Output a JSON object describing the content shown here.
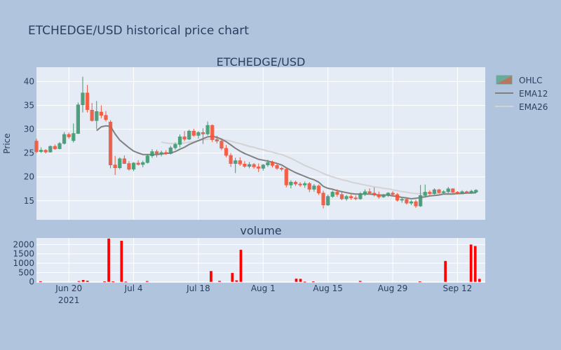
{
  "title": "ETCHEDGE/USD historical price chart",
  "chart_data": [
    {
      "type": "candlestick",
      "subtitle": "ETCHEDGE/USD",
      "ylabel": "Price",
      "ylim": [
        11.0,
        43.0
      ],
      "yticks": [
        15,
        20,
        25,
        30,
        35,
        40
      ],
      "xlim": [
        "2021-06-13",
        "2021-09-18"
      ],
      "xticks": [
        {
          "date": "2021-06-20",
          "label": "Jun 20",
          "sublabel": "2021"
        },
        {
          "date": "2021-07-04",
          "label": "Jul 4",
          "sublabel": ""
        },
        {
          "date": "2021-07-18",
          "label": "Jul 18",
          "sublabel": ""
        },
        {
          "date": "2021-08-01",
          "label": "Aug 1",
          "sublabel": ""
        },
        {
          "date": "2021-08-15",
          "label": "Aug 15",
          "sublabel": ""
        },
        {
          "date": "2021-08-29",
          "label": "Aug 29",
          "sublabel": ""
        },
        {
          "date": "2021-09-12",
          "label": "Sep 12",
          "sublabel": ""
        }
      ],
      "colors": {
        "increasing": "#3d9970",
        "decreasing": "#ef553b",
        "ema12": "#808080",
        "ema26": "#d3d3d3"
      },
      "legend": {
        "position": "top-right",
        "entries": [
          "OHLC",
          "EMA12",
          "EMA26"
        ]
      },
      "start_date": "2021-06-13",
      "ohlc": [
        [
          27.5,
          28.0,
          25.0,
          25.3
        ],
        [
          25.3,
          26.2,
          25.0,
          25.6
        ],
        [
          25.6,
          25.8,
          24.9,
          25.2
        ],
        [
          25.2,
          26.6,
          25.1,
          26.4
        ],
        [
          26.4,
          26.8,
          25.7,
          25.9
        ],
        [
          25.9,
          27.3,
          25.8,
          27.0
        ],
        [
          27.0,
          29.4,
          26.8,
          28.9
        ],
        [
          28.9,
          29.3,
          28.0,
          28.4
        ],
        [
          27.6,
          31.2,
          27.2,
          29.1
        ],
        [
          29.1,
          35.6,
          29.0,
          35.1
        ],
        [
          35.1,
          41.0,
          33.5,
          37.6
        ],
        [
          37.6,
          39.3,
          33.5,
          34.1
        ],
        [
          34.0,
          35.5,
          31.6,
          31.8
        ],
        [
          31.8,
          35.9,
          30.0,
          33.7
        ],
        [
          33.6,
          35.0,
          32.3,
          32.9
        ],
        [
          32.9,
          33.8,
          31.6,
          32.0
        ],
        [
          31.5,
          31.9,
          21.8,
          22.5
        ],
        [
          22.5,
          24.4,
          20.4,
          21.9
        ],
        [
          21.9,
          24.1,
          21.6,
          23.8
        ],
        [
          23.8,
          24.5,
          22.7,
          22.8
        ],
        [
          22.8,
          23.3,
          21.3,
          21.6
        ],
        [
          21.6,
          23.1,
          21.2,
          22.9
        ],
        [
          22.9,
          23.5,
          22.4,
          22.6
        ],
        [
          22.6,
          23.4,
          22.0,
          23.0
        ],
        [
          23.0,
          24.7,
          22.8,
          24.4
        ],
        [
          24.4,
          25.8,
          24.0,
          25.3
        ],
        [
          25.3,
          25.7,
          24.1,
          24.9
        ],
        [
          24.9,
          25.5,
          24.3,
          25.1
        ],
        [
          25.1,
          25.6,
          24.6,
          24.9
        ],
        [
          24.9,
          26.5,
          24.7,
          26.1
        ],
        [
          26.1,
          27.2,
          25.7,
          26.8
        ],
        [
          26.8,
          28.9,
          26.2,
          28.4
        ],
        [
          28.4,
          29.6,
          27.5,
          27.9
        ],
        [
          27.9,
          29.9,
          27.7,
          29.6
        ],
        [
          29.6,
          30.1,
          28.4,
          28.7
        ],
        [
          28.7,
          29.6,
          28.0,
          29.3
        ],
        [
          29.3,
          30.2,
          26.9,
          29.0
        ],
        [
          29.0,
          31.6,
          28.7,
          30.8
        ],
        [
          30.8,
          31.0,
          27.3,
          27.8
        ],
        [
          27.8,
          28.6,
          27.0,
          27.5
        ],
        [
          27.5,
          28.1,
          25.6,
          26.0
        ],
        [
          26.0,
          26.7,
          24.1,
          24.5
        ],
        [
          24.5,
          25.0,
          22.1,
          22.8
        ],
        [
          22.8,
          24.0,
          20.8,
          23.4
        ],
        [
          23.4,
          24.1,
          22.3,
          22.7
        ],
        [
          22.7,
          23.3,
          21.9,
          22.2
        ],
        [
          22.2,
          23.1,
          21.8,
          22.6
        ],
        [
          22.6,
          22.9,
          21.7,
          22.1
        ],
        [
          22.1,
          22.8,
          21.0,
          21.8
        ],
        [
          21.8,
          22.7,
          21.3,
          22.5
        ],
        [
          22.5,
          23.6,
          22.1,
          23.0
        ],
        [
          23.0,
          23.4,
          22.0,
          22.4
        ],
        [
          22.4,
          22.9,
          21.5,
          21.8
        ],
        [
          21.8,
          22.1,
          21.2,
          21.6
        ],
        [
          21.6,
          21.9,
          17.8,
          18.3
        ],
        [
          18.3,
          19.3,
          17.6,
          18.9
        ],
        [
          18.9,
          19.2,
          18.1,
          18.5
        ],
        [
          18.5,
          18.9,
          17.9,
          18.3
        ],
        [
          18.3,
          19.0,
          17.7,
          18.6
        ],
        [
          18.6,
          18.9,
          16.8,
          17.4
        ],
        [
          17.4,
          18.5,
          16.9,
          18.1
        ],
        [
          18.1,
          18.4,
          16.2,
          16.6
        ],
        [
          16.6,
          17.1,
          13.4,
          14.1
        ],
        [
          14.1,
          16.3,
          13.9,
          15.9
        ],
        [
          15.9,
          17.1,
          15.6,
          16.8
        ],
        [
          16.8,
          17.4,
          15.8,
          16.3
        ],
        [
          16.3,
          17.0,
          15.1,
          15.4
        ],
        [
          15.4,
          16.2,
          15.0,
          15.9
        ],
        [
          15.9,
          16.3,
          15.2,
          15.6
        ],
        [
          15.6,
          16.1,
          15.1,
          15.4
        ],
        [
          15.4,
          16.8,
          15.2,
          16.5
        ],
        [
          16.5,
          17.4,
          16.0,
          16.9
        ],
        [
          16.9,
          17.6,
          16.4,
          16.6
        ],
        [
          16.6,
          17.8,
          15.9,
          16.2
        ],
        [
          16.2,
          16.9,
          15.4,
          15.8
        ],
        [
          15.8,
          16.4,
          15.6,
          16.1
        ],
        [
          16.1,
          16.8,
          15.8,
          16.6
        ],
        [
          16.6,
          17.0,
          16.1,
          16.3
        ],
        [
          16.3,
          16.6,
          14.8,
          15.1
        ],
        [
          15.1,
          15.6,
          14.6,
          15.3
        ],
        [
          15.3,
          15.6,
          14.2,
          14.5
        ],
        [
          14.5,
          15.1,
          14.1,
          14.8
        ],
        [
          14.8,
          15.2,
          13.5,
          13.9
        ],
        [
          13.9,
          18.3,
          13.7,
          16.1
        ],
        [
          16.1,
          18.4,
          15.8,
          16.8
        ],
        [
          16.8,
          17.2,
          16.2,
          16.5
        ],
        [
          16.5,
          17.6,
          16.3,
          17.3
        ],
        [
          17.3,
          17.5,
          16.5,
          16.7
        ],
        [
          16.7,
          17.2,
          16.4,
          16.9
        ],
        [
          16.9,
          17.9,
          16.6,
          17.5
        ],
        [
          17.5,
          17.6,
          16.6,
          16.8
        ],
        [
          16.8,
          17.0,
          16.3,
          16.6
        ],
        [
          16.6,
          17.2,
          16.4,
          16.9
        ],
        [
          16.9,
          17.1,
          16.5,
          16.7
        ],
        [
          16.7,
          17.3,
          16.5,
          17.0
        ],
        [
          16.8,
          17.4,
          16.6,
          17.2
        ]
      ],
      "ema12": [
        [
          13,
          29.7
        ],
        [
          14,
          30.5
        ],
        [
          15,
          30.7
        ],
        [
          16,
          30.6
        ],
        [
          17,
          29.0
        ],
        [
          18,
          27.7
        ],
        [
          19,
          26.9
        ],
        [
          20,
          26.1
        ],
        [
          21,
          25.4
        ],
        [
          22,
          25.0
        ],
        [
          23,
          24.7
        ],
        [
          24,
          24.7
        ],
        [
          25,
          24.7
        ],
        [
          26,
          24.7
        ],
        [
          27,
          24.8
        ],
        [
          28,
          24.9
        ],
        [
          29,
          25.0
        ],
        [
          30,
          25.3
        ],
        [
          31,
          25.8
        ],
        [
          32,
          26.2
        ],
        [
          33,
          26.8
        ],
        [
          34,
          27.2
        ],
        [
          35,
          27.6
        ],
        [
          36,
          28.0
        ],
        [
          37,
          28.4
        ],
        [
          38,
          28.5
        ],
        [
          39,
          28.3
        ],
        [
          40,
          27.9
        ],
        [
          41,
          27.4
        ],
        [
          42,
          26.7
        ],
        [
          43,
          26.0
        ],
        [
          44,
          25.4
        ],
        [
          45,
          24.9
        ],
        [
          46,
          24.5
        ],
        [
          47,
          24.1
        ],
        [
          48,
          23.7
        ],
        [
          49,
          23.5
        ],
        [
          50,
          23.3
        ],
        [
          51,
          23.1
        ],
        [
          52,
          22.8
        ],
        [
          53,
          22.5
        ],
        [
          54,
          21.9
        ],
        [
          55,
          21.4
        ],
        [
          56,
          20.9
        ],
        [
          57,
          20.5
        ],
        [
          58,
          20.1
        ],
        [
          59,
          19.7
        ],
        [
          60,
          19.4
        ],
        [
          61,
          18.9
        ],
        [
          62,
          18.0
        ],
        [
          63,
          17.6
        ],
        [
          64,
          17.4
        ],
        [
          65,
          17.1
        ],
        [
          66,
          16.9
        ],
        [
          67,
          16.7
        ],
        [
          68,
          16.5
        ],
        [
          69,
          16.4
        ],
        [
          70,
          16.4
        ],
        [
          71,
          16.4
        ],
        [
          72,
          16.4
        ],
        [
          73,
          16.3
        ],
        [
          74,
          16.2
        ],
        [
          75,
          16.2
        ],
        [
          76,
          16.2
        ],
        [
          77,
          16.0
        ],
        [
          78,
          15.9
        ],
        [
          79,
          15.7
        ],
        [
          80,
          15.6
        ],
        [
          81,
          15.4
        ],
        [
          82,
          15.5
        ],
        [
          83,
          15.7
        ],
        [
          84,
          15.8
        ],
        [
          85,
          16.0
        ],
        [
          86,
          16.1
        ],
        [
          87,
          16.2
        ],
        [
          88,
          16.4
        ],
        [
          89,
          16.4
        ],
        [
          90,
          16.4
        ],
        [
          91,
          16.5
        ],
        [
          92,
          16.5
        ],
        [
          93,
          16.6
        ],
        [
          94,
          16.6
        ],
        [
          95,
          16.7
        ]
      ],
      "ema26": [
        [
          27,
          27.3
        ],
        [
          28,
          27.1
        ],
        [
          29,
          27.0
        ],
        [
          30,
          27.0
        ],
        [
          31,
          27.0
        ],
        [
          32,
          27.1
        ],
        [
          33,
          27.3
        ],
        [
          34,
          27.4
        ],
        [
          35,
          27.6
        ],
        [
          36,
          27.8
        ],
        [
          37,
          27.9
        ],
        [
          38,
          28.0
        ],
        [
          39,
          28.0
        ],
        [
          40,
          27.9
        ],
        [
          41,
          27.7
        ],
        [
          42,
          27.5
        ],
        [
          43,
          27.2
        ],
        [
          44,
          27.0
        ],
        [
          45,
          26.7
        ],
        [
          46,
          26.4
        ],
        [
          47,
          26.2
        ],
        [
          48,
          25.9
        ],
        [
          49,
          25.7
        ],
        [
          50,
          25.4
        ],
        [
          51,
          25.2
        ],
        [
          52,
          24.9
        ],
        [
          53,
          24.7
        ],
        [
          54,
          24.3
        ],
        [
          55,
          23.9
        ],
        [
          56,
          23.4
        ],
        [
          57,
          22.9
        ],
        [
          58,
          22.4
        ],
        [
          59,
          22.0
        ],
        [
          60,
          21.6
        ],
        [
          61,
          21.2
        ],
        [
          62,
          20.7
        ],
        [
          63,
          20.3
        ],
        [
          64,
          20.0
        ],
        [
          65,
          19.7
        ],
        [
          66,
          19.4
        ],
        [
          67,
          19.2
        ],
        [
          68,
          18.9
        ],
        [
          69,
          18.7
        ],
        [
          70,
          18.5
        ],
        [
          71,
          18.3
        ],
        [
          72,
          18.1
        ],
        [
          73,
          17.9
        ],
        [
          74,
          17.8
        ],
        [
          75,
          17.6
        ],
        [
          76,
          17.5
        ],
        [
          77,
          17.3
        ],
        [
          78,
          17.1
        ],
        [
          79,
          16.9
        ],
        [
          80,
          16.8
        ],
        [
          81,
          16.6
        ],
        [
          82,
          16.5
        ],
        [
          83,
          16.5
        ],
        [
          84,
          16.5
        ],
        [
          85,
          16.5
        ],
        [
          86,
          16.5
        ],
        [
          87,
          16.5
        ],
        [
          88,
          16.6
        ],
        [
          89,
          16.6
        ],
        [
          90,
          16.6
        ],
        [
          91,
          16.6
        ],
        [
          92,
          16.6
        ],
        [
          93,
          16.6
        ],
        [
          94,
          16.6
        ],
        [
          95,
          16.6
        ]
      ]
    },
    {
      "type": "bar",
      "subtitle": "volume",
      "ylim": [
        -50,
        2350
      ],
      "yticks": [
        0,
        500,
        1000,
        1500,
        2000
      ],
      "color": "#ff0000",
      "values": [
        30,
        0,
        0,
        0,
        0,
        0,
        0,
        0,
        0,
        40,
        100,
        60,
        0,
        0,
        0,
        0,
        0,
        0,
        0,
        0,
        0,
        0,
        0,
        0,
        0,
        0,
        0,
        0,
        0,
        0,
        0,
        0,
        0,
        0,
        0,
        0,
        0,
        0,
        0,
        0,
        0,
        0,
        0,
        0,
        0,
        0,
        0,
        0,
        0,
        0,
        0,
        0,
        0,
        0,
        0,
        0,
        0,
        0,
        0,
        0,
        0,
        0,
        0,
        0,
        0,
        0,
        0,
        0,
        0,
        0,
        0,
        0,
        0,
        0,
        0,
        0,
        0,
        0,
        0,
        0,
        0,
        0,
        0,
        0,
        0,
        0,
        0,
        0,
        0,
        0,
        0,
        0,
        0,
        0,
        0,
        0
      ],
      "spikes": [
        [
          15,
          20
        ],
        [
          16,
          2320
        ],
        [
          17,
          20
        ],
        [
          19,
          2200
        ],
        [
          20,
          10
        ],
        [
          25,
          40
        ],
        [
          40,
          580
        ],
        [
          42,
          50
        ],
        [
          45,
          480
        ],
        [
          46,
          80
        ],
        [
          47,
          1720
        ],
        [
          60,
          170
        ],
        [
          61,
          160
        ],
        [
          62,
          10
        ],
        [
          64,
          20
        ],
        [
          75,
          50
        ],
        [
          89,
          20
        ],
        [
          95,
          1120
        ],
        [
          101,
          2000
        ],
        [
          102,
          1920
        ],
        [
          103,
          160
        ]
      ]
    }
  ]
}
